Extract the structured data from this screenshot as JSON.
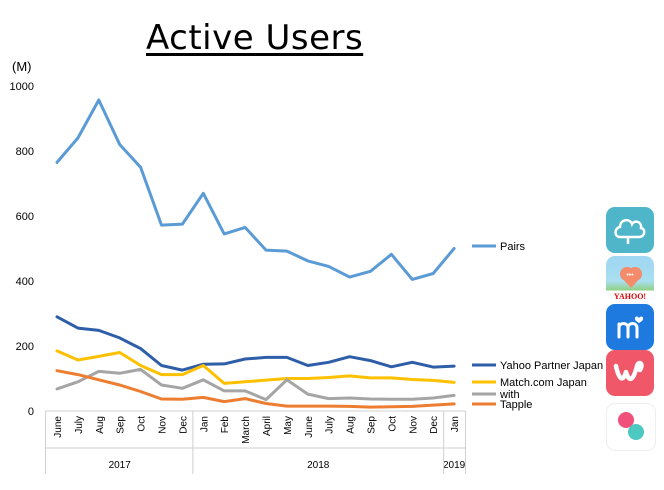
{
  "chart_data": {
    "type": "line",
    "title": "Active Users",
    "unit": "(M)",
    "ylim": [
      0,
      1000
    ],
    "yticks": [
      "0",
      "200",
      "400",
      "600",
      "800",
      "1000"
    ],
    "x": [
      "June",
      "July",
      "Aug",
      "Sep",
      "Oct",
      "Nov",
      "Dec",
      "Jan",
      "Feb",
      "March",
      "April",
      "May",
      "June",
      "July",
      "Aug",
      "Sep",
      "Oct",
      "Nov",
      "Dec",
      "Jan"
    ],
    "year_groups": [
      {
        "label": "2017",
        "start": 0,
        "end": 6
      },
      {
        "label": "2018",
        "start": 7,
        "end": 18
      },
      {
        "label": "2019",
        "start": 19,
        "end": 19
      }
    ],
    "grid": false,
    "legend": "right",
    "series": [
      {
        "name": "Pairs",
        "color": "#5b9bd5",
        "values": [
          765,
          840,
          957,
          820,
          750,
          572,
          575,
          670,
          545,
          565,
          495,
          492,
          462,
          445,
          412,
          430,
          482,
          405,
          423,
          500
        ]
      },
      {
        "name": "Yahoo Partner Japan",
        "color": "#2e5ea8",
        "values": [
          290,
          255,
          248,
          225,
          192,
          140,
          126,
          144,
          145,
          160,
          165,
          165,
          140,
          150,
          167,
          155,
          136,
          150,
          135,
          138
        ]
      },
      {
        "name": "Match.com Japan",
        "color": "#ffc000",
        "values": [
          185,
          157,
          168,
          180,
          140,
          112,
          112,
          140,
          85,
          90,
          95,
          100,
          100,
          103,
          108,
          102,
          102,
          97,
          94,
          88
        ]
      },
      {
        "name": "with",
        "color": "#a5a5a5",
        "values": [
          68,
          90,
          122,
          116,
          128,
          80,
          70,
          96,
          62,
          62,
          35,
          96,
          52,
          38,
          40,
          37,
          36,
          36,
          40,
          48
        ]
      },
      {
        "name": "Tapple",
        "color": "#ed7d31",
        "values": [
          124,
          112,
          96,
          80,
          60,
          37,
          36,
          42,
          29,
          38,
          23,
          15,
          15,
          15,
          14,
          12,
          13,
          14,
          18,
          22
        ]
      }
    ]
  },
  "icons": [
    {
      "name": "pairs-app-icon"
    },
    {
      "name": "yahoo-partner-app-icon",
      "text": "YAHOO!"
    },
    {
      "name": "match-app-icon"
    },
    {
      "name": "with-app-icon"
    },
    {
      "name": "tapple-app-icon"
    }
  ]
}
